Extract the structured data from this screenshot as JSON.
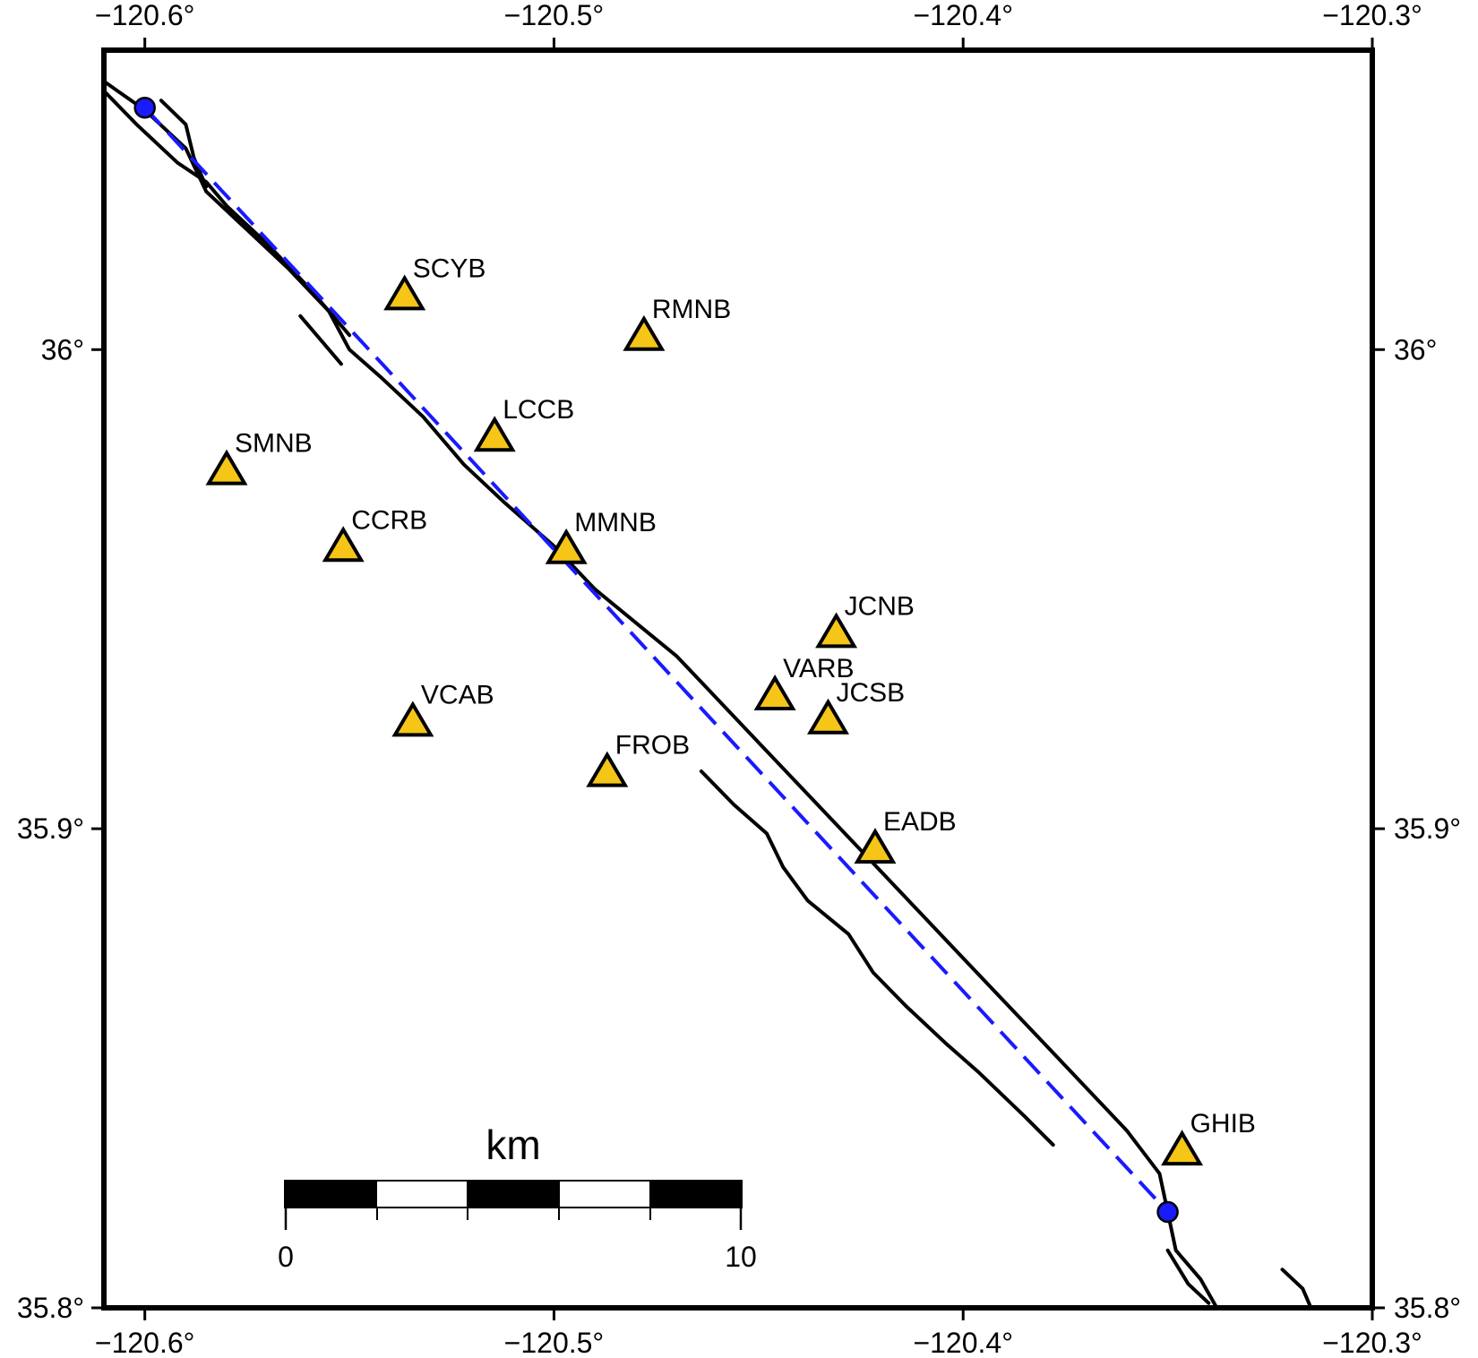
{
  "map": {
    "x_ticks": [
      "−120.6°",
      "−120.5°",
      "−120.4°",
      "−120.3°"
    ],
    "y_ticks": [
      "36°",
      "35.9°",
      "35.8°"
    ],
    "x_tick_values": [
      -120.6,
      -120.5,
      -120.4,
      -120.3
    ],
    "y_tick_values": [
      36.0,
      35.9,
      35.8
    ],
    "lon_range": [
      -120.61,
      -120.3
    ],
    "lat_range": [
      35.8,
      36.0625
    ],
    "colors": {
      "frame": "#000000",
      "fault": "#000000",
      "rupture": "#1a1aff",
      "station_fill": "#f5c518",
      "endpoint_fill": "#1a1aff"
    }
  },
  "stations": [
    {
      "name": "SCYB",
      "lon": -120.5365,
      "lat": 36.011
    },
    {
      "name": "RMNB",
      "lon": -120.478,
      "lat": 36.0025
    },
    {
      "name": "LCCB",
      "lon": -120.5145,
      "lat": 35.9815
    },
    {
      "name": "SMNB",
      "lon": -120.58,
      "lat": 35.9745
    },
    {
      "name": "CCRB",
      "lon": -120.5515,
      "lat": 35.9585
    },
    {
      "name": "MMNB",
      "lon": -120.497,
      "lat": 35.958
    },
    {
      "name": "JCNB",
      "lon": -120.431,
      "lat": 35.9405
    },
    {
      "name": "VARB",
      "lon": -120.446,
      "lat": 35.9275
    },
    {
      "name": "JCSB",
      "lon": -120.433,
      "lat": 35.9225
    },
    {
      "name": "VCAB",
      "lon": -120.5345,
      "lat": 35.922
    },
    {
      "name": "FROB",
      "lon": -120.487,
      "lat": 35.9115
    },
    {
      "name": "EADB",
      "lon": -120.4215,
      "lat": 35.8955
    },
    {
      "name": "GHIB",
      "lon": -120.3465,
      "lat": 35.8325
    }
  ],
  "rupture_endpoints": [
    {
      "lon": -120.6,
      "lat": 36.0505
    },
    {
      "lon": -120.35,
      "lat": 35.82
    }
  ],
  "faults": [
    [
      [
        -120.61,
        36.056
      ],
      [
        -120.6,
        36.05
      ],
      [
        -120.59,
        36.042
      ],
      [
        -120.585,
        36.033
      ],
      [
        -120.575,
        36.025
      ],
      [
        -120.565,
        36.017
      ],
      [
        -120.555,
        36.008
      ],
      [
        -120.55,
        36.0
      ],
      [
        -120.542,
        35.994
      ],
      [
        -120.532,
        35.986
      ],
      [
        -120.522,
        35.976
      ],
      [
        -120.512,
        35.968
      ],
      [
        -120.5,
        35.959
      ],
      [
        -120.49,
        35.95
      ],
      [
        -120.48,
        35.943
      ],
      [
        -120.47,
        35.936
      ],
      [
        -120.46,
        35.927
      ],
      [
        -120.45,
        35.918
      ],
      [
        -120.44,
        35.909
      ],
      [
        -120.43,
        35.9
      ],
      [
        -120.42,
        35.891
      ],
      [
        -120.41,
        35.882
      ],
      [
        -120.4,
        35.873
      ],
      [
        -120.39,
        35.864
      ],
      [
        -120.38,
        35.855
      ],
      [
        -120.37,
        35.846
      ],
      [
        -120.36,
        35.837
      ],
      [
        -120.352,
        35.828
      ],
      [
        -120.35,
        35.82
      ],
      [
        -120.348,
        35.812
      ],
      [
        -120.342,
        35.806
      ],
      [
        -120.338,
        35.8
      ]
    ],
    [
      [
        -120.61,
        36.054
      ],
      [
        -120.602,
        36.047
      ],
      [
        -120.592,
        36.039
      ],
      [
        -120.585,
        36.035
      ],
      [
        -120.58,
        36.03
      ],
      [
        -120.57,
        36.022
      ],
      [
        -120.56,
        36.013
      ],
      [
        -120.55,
        36.003
      ]
    ],
    [
      [
        -120.596,
        36.052
      ],
      [
        -120.59,
        36.047
      ],
      [
        -120.588,
        36.04
      ],
      [
        -120.585,
        36.034
      ]
    ],
    [
      [
        -120.562,
        36.007
      ],
      [
        -120.556,
        36.001
      ],
      [
        -120.552,
        35.997
      ]
    ],
    [
      [
        -120.464,
        35.912
      ],
      [
        -120.456,
        35.905
      ],
      [
        -120.448,
        35.899
      ],
      [
        -120.444,
        35.892
      ],
      [
        -120.438,
        35.885
      ],
      [
        -120.428,
        35.878
      ],
      [
        -120.422,
        35.87
      ],
      [
        -120.414,
        35.863
      ],
      [
        -120.404,
        35.855
      ],
      [
        -120.396,
        35.849
      ],
      [
        -120.385,
        35.84
      ],
      [
        -120.378,
        35.834
      ]
    ],
    [
      [
        -120.34,
        35.801
      ],
      [
        -120.345,
        35.805
      ],
      [
        -120.35,
        35.812
      ]
    ],
    [
      [
        -120.315,
        35.8
      ],
      [
        -120.317,
        35.804
      ],
      [
        -120.322,
        35.808
      ]
    ]
  ],
  "rupture_line": [
    [
      -120.6,
      36.0505
    ],
    [
      -120.35,
      35.82
    ]
  ],
  "scale_bar": {
    "unit_label": "km",
    "start_label": "0",
    "end_label": "10"
  }
}
